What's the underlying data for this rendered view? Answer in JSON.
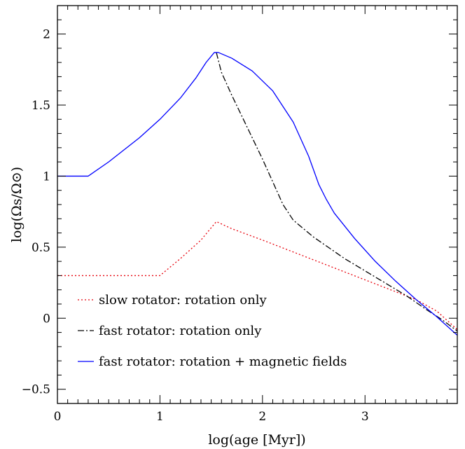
{
  "chart_data": {
    "type": "line",
    "title": "",
    "xlabel": "log(age [Myr])",
    "ylabel": "log(Ωs/Ω⊙)",
    "xlim": [
      0,
      3.9
    ],
    "ylim": [
      -0.6,
      2.2
    ],
    "x_ticks": [
      {
        "value": 0,
        "label": "0"
      },
      {
        "value": 1,
        "label": "1"
      },
      {
        "value": 2,
        "label": "2"
      },
      {
        "value": 3,
        "label": "3"
      }
    ],
    "y_ticks": [
      {
        "value": -0.5,
        "label": "−0.5"
      },
      {
        "value": 0,
        "label": "0"
      },
      {
        "value": 0.5,
        "label": "0.5"
      },
      {
        "value": 1,
        "label": "1"
      },
      {
        "value": 1.5,
        "label": "1.5"
      },
      {
        "value": 2,
        "label": "2"
      }
    ],
    "grid": false,
    "legend_position": "bottom-left",
    "series": [
      {
        "name": "slow rotator: rotation only",
        "color": "#e8000b",
        "style": "dotted",
        "x": [
          0,
          0.5,
          1.0,
          1.2,
          1.4,
          1.55,
          1.7,
          2.0,
          2.5,
          3.0,
          3.5,
          3.7,
          3.9
        ],
        "y": [
          0.3,
          0.3,
          0.3,
          0.42,
          0.55,
          0.68,
          0.63,
          0.55,
          0.41,
          0.27,
          0.13,
          0.05,
          -0.08
        ]
      },
      {
        "name": "fast rotator: rotation only",
        "color": "#000000",
        "style": "dashdot",
        "x": [
          1.55,
          1.6,
          1.7,
          1.8,
          1.9,
          2.0,
          2.1,
          2.2,
          2.3,
          2.5,
          2.8,
          3.1,
          3.4,
          3.6,
          3.75,
          3.9
        ],
        "y": [
          1.87,
          1.73,
          1.57,
          1.42,
          1.27,
          1.12,
          0.96,
          0.8,
          0.69,
          0.57,
          0.42,
          0.29,
          0.16,
          0.06,
          -0.01,
          -0.09
        ]
      },
      {
        "name": "fast rotator: rotation + magnetic fields",
        "color": "#0000ff",
        "style": "solid",
        "x": [
          0,
          0.3,
          0.5,
          0.8,
          1.0,
          1.2,
          1.35,
          1.45,
          1.53,
          1.57,
          1.7,
          1.9,
          2.1,
          2.3,
          2.45,
          2.55,
          2.62,
          2.7,
          2.9,
          3.1,
          3.3,
          3.5,
          3.7,
          3.9
        ],
        "y": [
          1.0,
          1.0,
          1.1,
          1.27,
          1.4,
          1.55,
          1.69,
          1.8,
          1.87,
          1.87,
          1.83,
          1.74,
          1.6,
          1.38,
          1.14,
          0.94,
          0.84,
          0.74,
          0.56,
          0.4,
          0.26,
          0.13,
          0.01,
          -0.12
        ]
      }
    ]
  }
}
